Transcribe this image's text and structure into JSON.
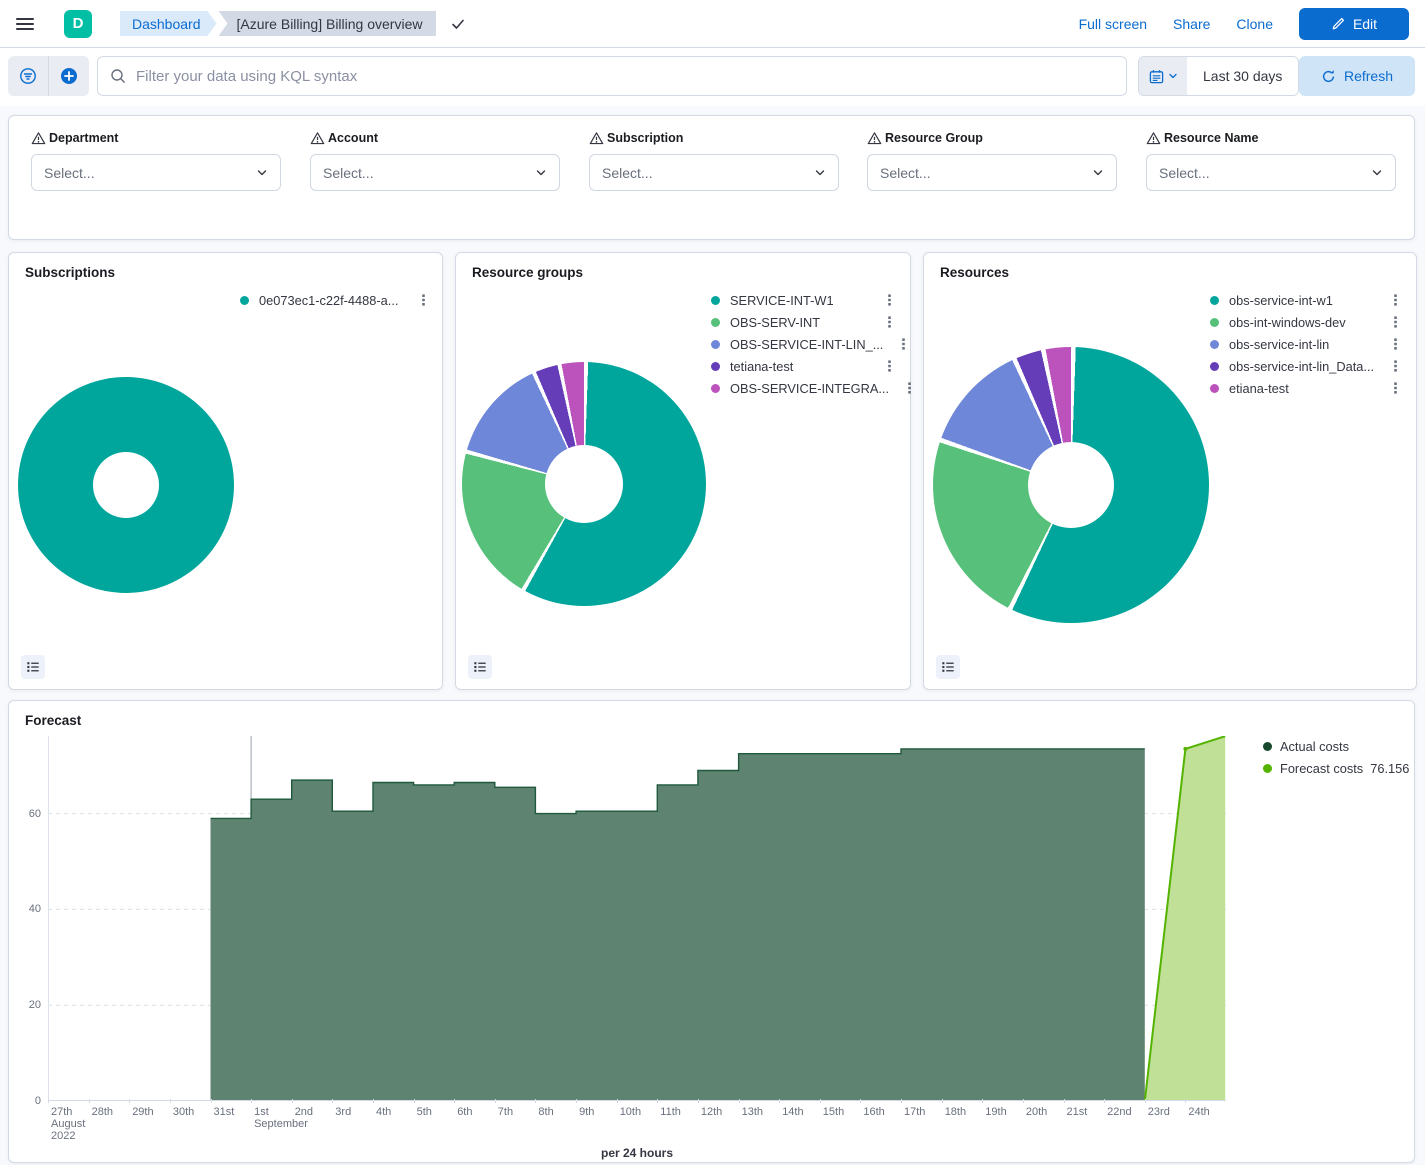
{
  "header": {
    "logo_letter": "D",
    "breadcrumb_dashboard": "Dashboard",
    "breadcrumb_current": "[Azure Billing] Billing overview",
    "action_fullscreen": "Full screen",
    "action_share": "Share",
    "action_clone": "Clone",
    "edit_button": "Edit"
  },
  "query_bar": {
    "placeholder": "Filter your data using KQL syntax",
    "time_range": "Last 30 days",
    "refresh": "Refresh"
  },
  "controls": [
    {
      "label": "Department",
      "placeholder": "Select..."
    },
    {
      "label": "Account",
      "placeholder": "Select..."
    },
    {
      "label": "Subscription",
      "placeholder": "Select..."
    },
    {
      "label": "Resource Group",
      "placeholder": "Select..."
    },
    {
      "label": "Resource Name",
      "placeholder": "Select..."
    }
  ],
  "donut_panels": [
    {
      "title": "Subscriptions",
      "chart_data": {
        "type": "pie",
        "items": [
          {
            "label": "0e073ec1-c22f-4488-a...",
            "color": "#00a69b",
            "value": 100
          }
        ]
      }
    },
    {
      "title": "Resource groups",
      "chart_data": {
        "type": "pie",
        "items": [
          {
            "label": "SERVICE-INT-W1",
            "color": "#00a69b",
            "value": 58
          },
          {
            "label": "OBS-SERV-INT",
            "color": "#57c17b",
            "value": 21
          },
          {
            "label": "OBS-SERVICE-INT-LIN_...",
            "color": "#6f87d8",
            "value": 14
          },
          {
            "label": "tetiana-test",
            "color": "#663db8",
            "value": 3.5
          },
          {
            "label": "OBS-SERVICE-INTEGRA...",
            "color": "#bc52bc",
            "value": 3.5
          }
        ]
      }
    },
    {
      "title": "Resources",
      "chart_data": {
        "type": "pie",
        "items": [
          {
            "label": "obs-service-int-w1",
            "color": "#00a69b",
            "value": 57
          },
          {
            "label": "obs-int-windows-dev",
            "color": "#57c17b",
            "value": 23
          },
          {
            "label": "obs-service-int-lin",
            "color": "#6f87d8",
            "value": 13
          },
          {
            "label": "obs-service-int-lin_Data...",
            "color": "#663db8",
            "value": 3.5
          },
          {
            "label": "etiana-test",
            "color": "#bc52bc",
            "value": 3.5
          }
        ]
      }
    }
  ],
  "forecast_panel": {
    "title": "Forecast",
    "legend": [
      {
        "label": "Actual costs",
        "color": "#17492d"
      },
      {
        "label": "Forecast costs",
        "value": "76.156",
        "color": "#54b300"
      }
    ],
    "chart_data": {
      "type": "area",
      "title": "Forecast",
      "xlabel": "per 24 hours",
      "ylabel": "",
      "ylim": [
        0,
        76.2
      ],
      "y_ticks": [
        0,
        20,
        40,
        60
      ],
      "x_days": 29,
      "x_tick_labels": [
        "27th",
        "28th",
        "29th",
        "30th",
        "31st",
        "1st",
        "2nd",
        "3rd",
        "4th",
        "5th",
        "6th",
        "7th",
        "8th",
        "9th",
        "10th",
        "11th",
        "12th",
        "13th",
        "14th",
        "15th",
        "16th",
        "17th",
        "18th",
        "19th",
        "20th",
        "21st",
        "22nd",
        "23rd",
        "24th"
      ],
      "x_sub_labels": [
        {
          "index": 0,
          "lines": [
            "August",
            "2022"
          ]
        },
        {
          "index": 5,
          "lines": [
            "September"
          ]
        }
      ],
      "month_gridline_index": 5,
      "series": [
        {
          "name": "Actual costs",
          "render": "step-area",
          "start_index": 4,
          "start_date": "31st August 2022",
          "values": [
            59,
            63,
            67,
            60.5,
            66.5,
            66,
            66.5,
            65.5,
            60,
            60.5,
            60.5,
            66,
            69,
            72.5,
            72.5,
            72.5,
            72.5,
            73.5,
            73.5,
            73.5,
            73.5,
            73.5,
            73.5
          ],
          "fill": "#5f8371",
          "stroke": "#1f5a3d"
        },
        {
          "name": "Forecast costs",
          "render": "line-area",
          "points": [
            [
              4,
              0
            ],
            [
              27,
              0
            ],
            [
              28,
              73.5
            ],
            [
              29,
              76.156
            ]
          ],
          "final_value": 76.156,
          "fill": "#bfe096",
          "stroke": "#54b300"
        }
      ]
    }
  }
}
